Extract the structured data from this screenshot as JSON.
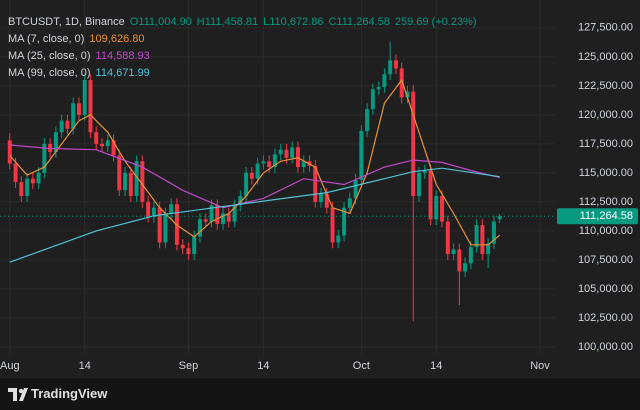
{
  "chart_data": {
    "type": "candlestick",
    "symbol": "BTCUSDT, 1D, Binance",
    "ohlc_labels": [
      "O111,004.90",
      "H111,458.81",
      "L110,672.86",
      "C111,264.58",
      "259.69 (+0.23%)"
    ],
    "last_price_label": "111,264.58",
    "up_color": "#089981",
    "down_color": "#f23645",
    "x": [
      0,
      1,
      2,
      3,
      4,
      5,
      6,
      7,
      8,
      9,
      10,
      11,
      12,
      13,
      14,
      15,
      16,
      17,
      18,
      19,
      20,
      21,
      22,
      23,
      24,
      25,
      26,
      27,
      28,
      29,
      30,
      31,
      32,
      33,
      34,
      35,
      36,
      37,
      38,
      39,
      40,
      41,
      42,
      43,
      44,
      45,
      46,
      47,
      48,
      49,
      50,
      51,
      52,
      53,
      54,
      55,
      56,
      57,
      58,
      59,
      60,
      61,
      62,
      63,
      64,
      65,
      66,
      67,
      68,
      69,
      70,
      71,
      72,
      73,
      74,
      75,
      76,
      77,
      78,
      79,
      80,
      81,
      82,
      83,
      84,
      85
    ],
    "open": [
      117800,
      115800,
      114200,
      113000,
      114500,
      114100,
      115000,
      117500,
      116800,
      118500,
      119500,
      118800,
      121000,
      120000,
      123000,
      118500,
      117500,
      117300,
      117800,
      116500,
      113500,
      115000,
      113000,
      116000,
      112500,
      111200,
      112000,
      109000,
      111500,
      112300,
      108800,
      108500,
      108000,
      109500,
      111000,
      110800,
      112200,
      110600,
      111500,
      110800,
      112200,
      113000,
      115000,
      114500,
      115800,
      116000,
      115500,
      116600,
      117000,
      116300,
      117200,
      115500,
      116000,
      115600,
      112500,
      113200,
      112000,
      109000,
      109600,
      112000,
      112800,
      114400,
      118600,
      120500,
      122200,
      122400,
      123500,
      124700,
      124000,
      121500,
      122000,
      113000,
      115000,
      115200,
      111000,
      113000,
      110800,
      108000,
      108400,
      106500,
      107200,
      108600,
      110500,
      108000,
      108900,
      111004.9
    ],
    "high": [
      118400,
      116300,
      114700,
      115000,
      115000,
      115500,
      118000,
      118000,
      119000,
      120000,
      120000,
      121500,
      121500,
      123500,
      123500,
      119000,
      118000,
      118300,
      118300,
      117000,
      115500,
      115500,
      116500,
      116500,
      113000,
      112500,
      112500,
      112000,
      112800,
      112800,
      109300,
      109000,
      110000,
      111500,
      111500,
      112700,
      112700,
      112000,
      112000,
      112700,
      113500,
      115500,
      115500,
      116300,
      116500,
      116500,
      117100,
      117500,
      117500,
      117700,
      117700,
      116500,
      116500,
      116100,
      113700,
      113700,
      112500,
      110100,
      112500,
      113300,
      114900,
      119100,
      121000,
      122700,
      122900,
      124000,
      126300,
      125200,
      124500,
      122500,
      122600,
      115500,
      115700,
      115700,
      113500,
      113500,
      111300,
      108900,
      108900,
      107700,
      109100,
      111000,
      111000,
      109400,
      111300,
      111458.81
    ],
    "low": [
      115300,
      113700,
      112500,
      112500,
      113600,
      113600,
      114500,
      116300,
      116300,
      118000,
      118300,
      118300,
      119500,
      119500,
      118000,
      117000,
      116800,
      116800,
      116000,
      113000,
      113000,
      112500,
      112500,
      112000,
      110700,
      110700,
      108500,
      108500,
      111000,
      108300,
      108000,
      107500,
      107500,
      109000,
      110300,
      110300,
      110100,
      110100,
      110300,
      110300,
      111700,
      112500,
      114000,
      114000,
      115300,
      115000,
      115000,
      116100,
      115800,
      115800,
      115000,
      115000,
      115100,
      112000,
      112000,
      111500,
      108500,
      108500,
      109100,
      111500,
      112300,
      113900,
      118100,
      120000,
      121700,
      121900,
      123000,
      123500,
      121000,
      121000,
      102200,
      112500,
      114500,
      110500,
      110500,
      110300,
      107500,
      107500,
      103600,
      106000,
      106700,
      108100,
      107500,
      106800,
      108400,
      110672.86
    ],
    "close": [
      115800,
      114200,
      113000,
      114500,
      114100,
      115000,
      117500,
      116800,
      118500,
      119500,
      118800,
      121000,
      120000,
      123000,
      118500,
      117500,
      117300,
      117800,
      116500,
      113500,
      115000,
      113000,
      116000,
      112500,
      111200,
      112000,
      109000,
      111500,
      112300,
      108800,
      108500,
      108000,
      109500,
      111000,
      110800,
      112200,
      110600,
      111500,
      110800,
      112200,
      113000,
      115000,
      114500,
      115800,
      116000,
      115500,
      116600,
      117000,
      116300,
      117200,
      115500,
      116000,
      115600,
      112500,
      113200,
      112000,
      109000,
      109600,
      112000,
      112800,
      114400,
      118600,
      120500,
      122200,
      122400,
      123500,
      124700,
      124000,
      121500,
      122000,
      113000,
      115000,
      115200,
      111000,
      113000,
      110800,
      108000,
      108400,
      106500,
      107200,
      108600,
      110500,
      108000,
      108900,
      110800,
      111264.58
    ],
    "series": [
      {
        "name": "MA (7, close, 0)",
        "value_label": "109,626.80",
        "color": "#e8913a",
        "x": [
          0,
          3,
          6,
          9,
          12,
          14,
          17,
          20,
          23,
          26,
          29,
          32,
          35,
          38,
          41,
          44,
          47,
          50,
          53,
          56,
          59,
          62,
          65,
          68,
          71,
          74,
          77,
          80,
          83,
          85
        ],
        "values": [
          116500,
          114800,
          115500,
          117500,
          119500,
          120000,
          118500,
          116000,
          114000,
          112000,
          110500,
          109500,
          110800,
          111500,
          113000,
          115000,
          116000,
          116300,
          115500,
          112000,
          111500,
          115000,
          121000,
          123000,
          118500,
          114000,
          111500,
          108800,
          108800,
          109626.8
        ]
      },
      {
        "name": "MA (25, close, 0)",
        "value_label": "114,588.93",
        "color": "#c248c9",
        "x": [
          0,
          7,
          15,
          23,
          30,
          37,
          44,
          51,
          58,
          65,
          70,
          75,
          80,
          85
        ],
        "values": [
          117400,
          117100,
          117000,
          115500,
          113500,
          112000,
          112800,
          114500,
          114000,
          115500,
          116100,
          115900,
          115200,
          114588.93
        ]
      },
      {
        "name": "MA (99, close, 0)",
        "value_label": "114,671.99",
        "color": "#4fc3d9",
        "x": [
          0,
          15,
          25,
          40,
          55,
          65,
          70,
          75,
          85
        ],
        "values": [
          107300,
          110000,
          111300,
          112300,
          113300,
          114500,
          115100,
          115400,
          114671.99
        ]
      }
    ],
    "xlim": [
      -1.7,
      94.6
    ],
    "xticks": [
      {
        "value": 0,
        "label": "Aug"
      },
      {
        "value": 13,
        "label": "14"
      },
      {
        "value": 31,
        "label": "Sep"
      },
      {
        "value": 44,
        "label": "14"
      },
      {
        "value": 61,
        "label": "Oct"
      },
      {
        "value": 74,
        "label": "14"
      },
      {
        "value": 92,
        "label": "Nov"
      }
    ],
    "ylim": [
      99300,
      129900
    ],
    "yticks": [
      {
        "value": 100000,
        "label": "100,000.00"
      },
      {
        "value": 102500,
        "label": "102,500.00"
      },
      {
        "value": 105000,
        "label": "105,000.00"
      },
      {
        "value": 107500,
        "label": "107,500.00"
      },
      {
        "value": 110000,
        "label": "110,000.00"
      },
      {
        "value": 112500,
        "label": "112,500.00"
      },
      {
        "value": 115000,
        "label": "115,000.00"
      },
      {
        "value": 117500,
        "label": "117,500.00"
      },
      {
        "value": 120000,
        "label": "120,000.00"
      },
      {
        "value": 122500,
        "label": "122,500.00"
      },
      {
        "value": 125000,
        "label": "125,000.00"
      },
      {
        "value": 127500,
        "label": "127,500.00"
      }
    ],
    "grid": true,
    "brand": "TradingView"
  }
}
